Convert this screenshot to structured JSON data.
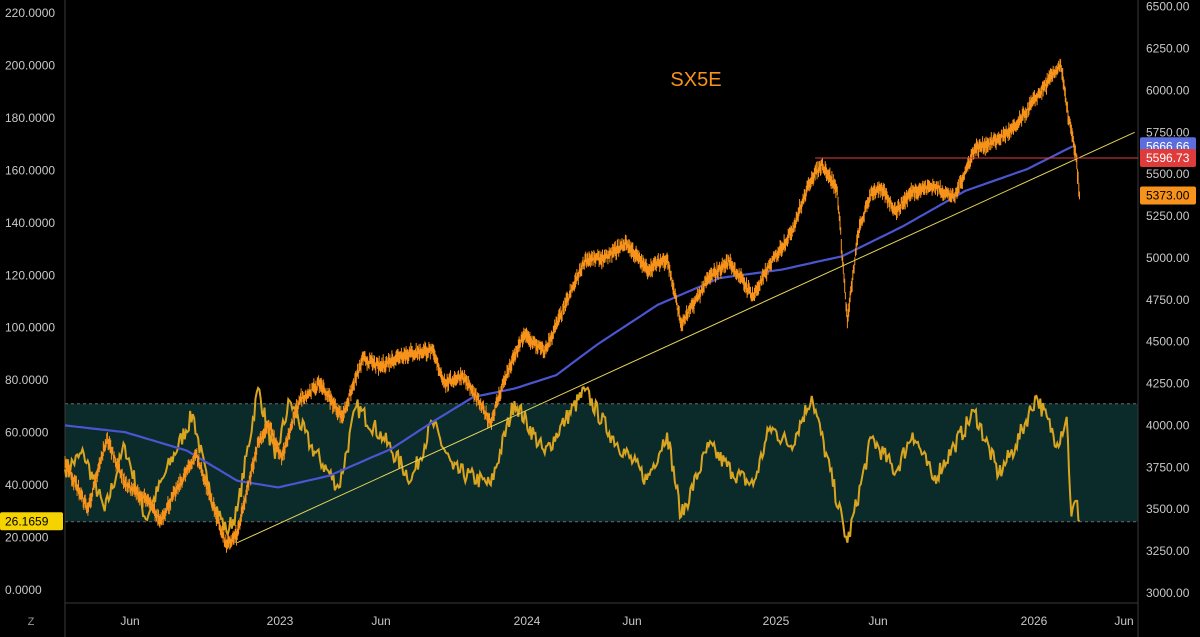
{
  "ui": {
    "corner_button": "Z"
  },
  "chart_data": {
    "type": "line",
    "title": "SX5E",
    "x_ticks": [
      "Jun",
      "2023",
      "Jun",
      "2024",
      "Jun",
      "2025",
      "Jun",
      "2026",
      "Jun"
    ],
    "x_range": [
      "2022-02-01",
      "2026-06-15"
    ],
    "left_axis": {
      "ticks": [
        "220.0000",
        "200.0000",
        "180.0000",
        "160.0000",
        "140.0000",
        "120.0000",
        "100.0000",
        "80.0000",
        "60.0000",
        "40.0000",
        "20.0000",
        "0.0000"
      ],
      "range": [
        -5,
        225
      ]
    },
    "right_axis": {
      "ticks": [
        "6500.00",
        "6250.00",
        "6000.00",
        "5750.00",
        "5500.00",
        "5250.00",
        "5000.00",
        "4750.00",
        "4500.00",
        "4250.00",
        "4000.00",
        "3750.00",
        "3500.00",
        "3250.00",
        "3000.00"
      ],
      "range": [
        2940,
        6540
      ]
    },
    "price_series": {
      "name": "SX5E",
      "color": "#f7931a",
      "points": [
        [
          "2022-02-01",
          3780
        ],
        [
          "2022-03-07",
          3500
        ],
        [
          "2022-04-04",
          3920
        ],
        [
          "2022-05-02",
          3650
        ],
        [
          "2022-06-06",
          3540
        ],
        [
          "2022-06-22",
          3430
        ],
        [
          "2022-08-15",
          3830
        ],
        [
          "2022-09-29",
          3280
        ],
        [
          "2022-10-15",
          3350
        ],
        [
          "2022-11-15",
          3900
        ],
        [
          "2022-12-01",
          4000
        ],
        [
          "2022-12-20",
          3800
        ],
        [
          "2023-01-15",
          4150
        ],
        [
          "2023-02-15",
          4250
        ],
        [
          "2023-03-20",
          4050
        ],
        [
          "2023-04-20",
          4400
        ],
        [
          "2023-05-15",
          4350
        ],
        [
          "2023-06-15",
          4420
        ],
        [
          "2023-07-31",
          4450
        ],
        [
          "2023-08-20",
          4250
        ],
        [
          "2023-09-15",
          4300
        ],
        [
          "2023-10-27",
          4020
        ],
        [
          "2023-11-15",
          4260
        ],
        [
          "2023-12-15",
          4540
        ],
        [
          "2024-01-15",
          4440
        ],
        [
          "2024-02-15",
          4720
        ],
        [
          "2024-03-15",
          4990
        ],
        [
          "2024-04-15",
          5000
        ],
        [
          "2024-05-15",
          5090
        ],
        [
          "2024-06-15",
          4930
        ],
        [
          "2024-07-15",
          5000
        ],
        [
          "2024-08-05",
          4600
        ],
        [
          "2024-09-15",
          4880
        ],
        [
          "2024-10-15",
          4980
        ],
        [
          "2024-11-20",
          4770
        ],
        [
          "2024-12-15",
          4960
        ],
        [
          "2025-01-15",
          5150
        ],
        [
          "2025-02-15",
          5480
        ],
        [
          "2025-03-03",
          5560
        ],
        [
          "2025-03-25",
          5400
        ],
        [
          "2025-04-09",
          4620
        ],
        [
          "2025-04-25",
          5150
        ],
        [
          "2025-05-15",
          5400
        ],
        [
          "2025-06-01",
          5400
        ],
        [
          "2025-06-20",
          5280
        ],
        [
          "2025-07-15",
          5400
        ],
        [
          "2025-08-15",
          5430
        ],
        [
          "2025-09-15",
          5360
        ],
        [
          "2025-10-15",
          5650
        ],
        [
          "2025-11-15",
          5700
        ],
        [
          "2025-12-15",
          5780
        ],
        [
          "2026-01-15",
          5960
        ],
        [
          "2026-02-01",
          6050
        ],
        [
          "2026-02-20",
          6160
        ],
        [
          "2026-03-01",
          5900
        ],
        [
          "2026-03-15",
          5600
        ],
        [
          "2026-03-20",
          5373
        ]
      ]
    },
    "ma_series": {
      "color": "#4a55d0",
      "points": [
        [
          "2022-02-01",
          4000
        ],
        [
          "2022-05-01",
          3960
        ],
        [
          "2022-08-01",
          3850
        ],
        [
          "2022-10-15",
          3670
        ],
        [
          "2022-12-15",
          3630
        ],
        [
          "2023-03-01",
          3700
        ],
        [
          "2023-06-01",
          3860
        ],
        [
          "2023-08-01",
          4020
        ],
        [
          "2023-10-01",
          4170
        ],
        [
          "2023-12-01",
          4220
        ],
        [
          "2024-02-01",
          4300
        ],
        [
          "2024-04-01",
          4480
        ],
        [
          "2024-07-01",
          4720
        ],
        [
          "2024-10-01",
          4880
        ],
        [
          "2025-01-01",
          4930
        ],
        [
          "2025-04-01",
          5010
        ],
        [
          "2025-07-01",
          5190
        ],
        [
          "2025-10-01",
          5400
        ],
        [
          "2026-01-01",
          5530
        ],
        [
          "2026-03-10",
          5666.66
        ]
      ]
    },
    "oscillator_series": {
      "color": "#d9a520",
      "upper_band": 71,
      "lower_band": 26,
      "points": [
        [
          "2022-02-01",
          46
        ],
        [
          "2022-03-01",
          52
        ],
        [
          "2022-04-01",
          30
        ],
        [
          "2022-05-01",
          55
        ],
        [
          "2022-06-01",
          27
        ],
        [
          "2022-07-01",
          45
        ],
        [
          "2022-08-10",
          67
        ],
        [
          "2022-09-01",
          40
        ],
        [
          "2022-09-29",
          22
        ],
        [
          "2022-10-15",
          30
        ],
        [
          "2022-11-15",
          77
        ],
        [
          "2022-12-10",
          50
        ],
        [
          "2023-01-01",
          72
        ],
        [
          "2023-02-01",
          55
        ],
        [
          "2023-03-15",
          39
        ],
        [
          "2023-04-10",
          70
        ],
        [
          "2023-05-20",
          58
        ],
        [
          "2023-07-01",
          42
        ],
        [
          "2023-08-01",
          64
        ],
        [
          "2023-09-01",
          46
        ],
        [
          "2023-10-27",
          40
        ],
        [
          "2023-12-01",
          72
        ],
        [
          "2024-01-15",
          52
        ],
        [
          "2024-02-15",
          65
        ],
        [
          "2024-03-15",
          76
        ],
        [
          "2024-04-20",
          60
        ],
        [
          "2024-06-15",
          42
        ],
        [
          "2024-07-15",
          60
        ],
        [
          "2024-08-05",
          28
        ],
        [
          "2024-09-15",
          55
        ],
        [
          "2024-10-20",
          45
        ],
        [
          "2024-11-20",
          40
        ],
        [
          "2024-12-15",
          62
        ],
        [
          "2025-01-15",
          55
        ],
        [
          "2025-02-15",
          74
        ],
        [
          "2025-04-09",
          18
        ],
        [
          "2025-05-15",
          58
        ],
        [
          "2025-06-20",
          45
        ],
        [
          "2025-07-15",
          60
        ],
        [
          "2025-08-15",
          42
        ],
        [
          "2025-09-15",
          55
        ],
        [
          "2025-10-15",
          68
        ],
        [
          "2025-11-20",
          44
        ],
        [
          "2025-12-15",
          55
        ],
        [
          "2026-01-15",
          74
        ],
        [
          "2026-02-15",
          56
        ],
        [
          "2026-03-01",
          66
        ],
        [
          "2026-03-08",
          28
        ],
        [
          "2026-03-15",
          34
        ],
        [
          "2026-03-20",
          26.1659
        ]
      ]
    },
    "trendline": {
      "color": "#e6d35a",
      "start": [
        "2022-10-15",
        3300
      ],
      "end": [
        "2026-06-10",
        5750
      ]
    },
    "resistance_line": {
      "color": "#e04040",
      "value": 5596.73,
      "from": "2025-02-20",
      "to": "2026-06-15"
    },
    "price_tags": [
      {
        "label": "5666.66",
        "value": 5666.66,
        "color": "#5b6ee0"
      },
      {
        "label": "5596.73",
        "value": 5596.73,
        "color": "#e03b3b"
      },
      {
        "label": "5373.00",
        "value": 5373.0,
        "color": "#f7931a"
      }
    ],
    "osc_tag": {
      "label": "26.1659",
      "value": 26.1659,
      "color": "#f5d300"
    },
    "grid": false,
    "legend": "none"
  }
}
